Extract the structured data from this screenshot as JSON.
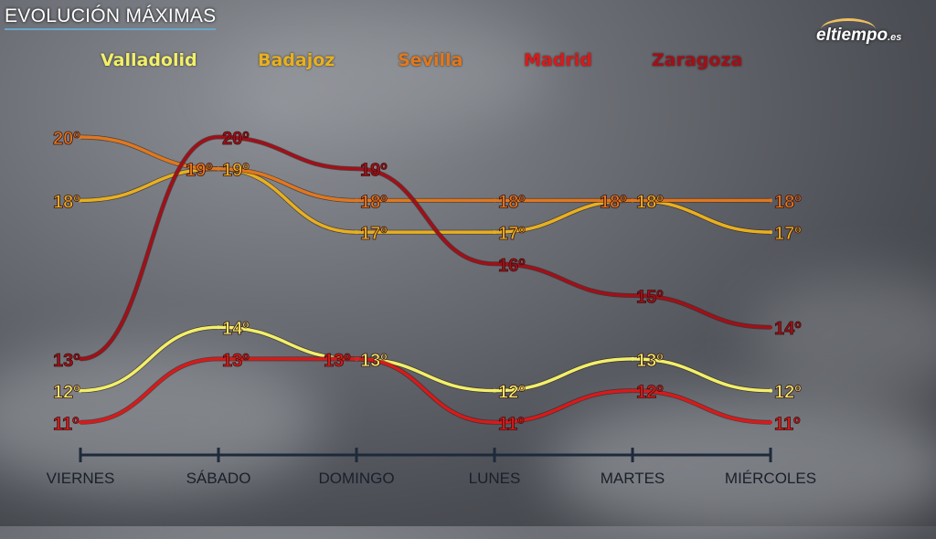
{
  "header": {
    "title": "EVOLUCIÓN MÁXIMAS",
    "logo_main": "eltiempo",
    "logo_suffix": ".es"
  },
  "chart_data": {
    "type": "line",
    "title": "EVOLUCIÓN MÁXIMAS",
    "categories": [
      "VIERNES",
      "SÁBADO",
      "DOMINGO",
      "LUNES",
      "MARTES",
      "MIÉRCOLES"
    ],
    "unit": "º",
    "ylim": [
      10,
      21
    ],
    "legend_position": "top",
    "series": [
      {
        "name": "Valladolid",
        "color": "#f2ef6a",
        "values": [
          12,
          14,
          13,
          12,
          13,
          12
        ]
      },
      {
        "name": "Badajoz",
        "color": "#e8b020",
        "values": [
          18,
          19,
          17,
          17,
          18,
          17
        ]
      },
      {
        "name": "Sevilla",
        "color": "#e0781e",
        "values": [
          20,
          19,
          18,
          18,
          18,
          18
        ]
      },
      {
        "name": "Madrid",
        "color": "#d81a1a",
        "values": [
          11,
          13,
          13,
          11,
          12,
          11
        ]
      },
      {
        "name": "Zaragoza",
        "color": "#a01018",
        "values": [
          13,
          20,
          19,
          16,
          15,
          14
        ]
      }
    ]
  }
}
